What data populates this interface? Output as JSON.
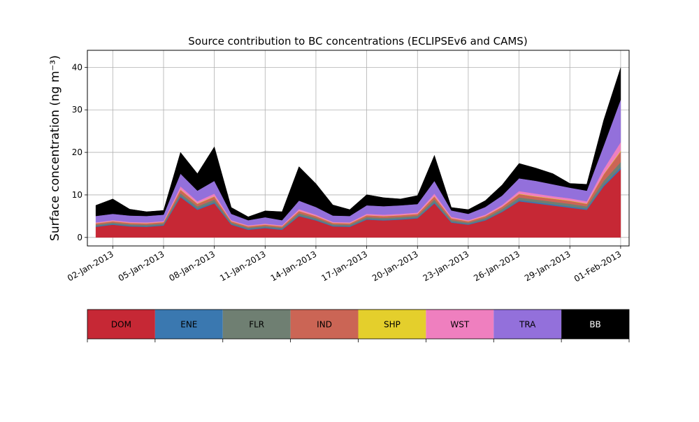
{
  "chart_data": {
    "type": "area",
    "stacked": true,
    "title": "Source contribution to BC concentrations (ECLIPSEv6 and CAMS)",
    "ylabel": "Surface concentration (ng m⁻³)",
    "xlabel": "",
    "xlim": [
      "2012-12-31T12:00",
      "2013-02-01T12:00"
    ],
    "ylim": [
      -2,
      44
    ],
    "grid": true,
    "x_ticks": [
      "02-Jan-2013",
      "05-Jan-2013",
      "08-Jan-2013",
      "11-Jan-2013",
      "14-Jan-2013",
      "17-Jan-2013",
      "20-Jan-2013",
      "23-Jan-2013",
      "26-Jan-2013",
      "29-Jan-2013",
      "01-Feb-2013"
    ],
    "y_ticks": [
      0,
      10,
      20,
      30,
      40
    ],
    "x": [
      "2013-01-01",
      "2013-01-02",
      "2013-01-03",
      "2013-01-04",
      "2013-01-05",
      "2013-01-06",
      "2013-01-07",
      "2013-01-08",
      "2013-01-09",
      "2013-01-10",
      "2013-01-11",
      "2013-01-12",
      "2013-01-13",
      "2013-01-14",
      "2013-01-15",
      "2013-01-16",
      "2013-01-17",
      "2013-01-18",
      "2013-01-19",
      "2013-01-20",
      "2013-01-21",
      "2013-01-22",
      "2013-01-23",
      "2013-01-24",
      "2013-01-25",
      "2013-01-26",
      "2013-01-27",
      "2013-01-28",
      "2013-01-29",
      "2013-01-30",
      "2013-01-31",
      "2013-02-01"
    ],
    "series": [
      {
        "name": "DOM",
        "color": "#c62835",
        "values": [
          2.5,
          3.0,
          2.6,
          2.5,
          2.8,
          9.5,
          6.5,
          8.0,
          3.0,
          1.8,
          2.2,
          1.8,
          5.0,
          4.0,
          2.6,
          2.5,
          4.2,
          4.0,
          4.2,
          4.5,
          8.0,
          3.5,
          3.0,
          4.0,
          6.0,
          8.5,
          8.0,
          7.5,
          7.0,
          6.5,
          12.0,
          16.0
        ]
      },
      {
        "name": "ENE",
        "color": "#3a78b0",
        "values": [
          0.2,
          0.2,
          0.2,
          0.2,
          0.2,
          0.3,
          0.3,
          0.3,
          0.2,
          0.2,
          0.2,
          0.2,
          0.2,
          0.2,
          0.2,
          0.2,
          0.2,
          0.2,
          0.2,
          0.2,
          0.3,
          0.2,
          0.2,
          0.2,
          0.2,
          0.3,
          0.3,
          0.3,
          0.3,
          0.3,
          0.4,
          0.5
        ]
      },
      {
        "name": "FLR",
        "color": "#6f7f72",
        "values": [
          0.3,
          0.3,
          0.3,
          0.3,
          0.3,
          0.6,
          0.5,
          0.6,
          0.3,
          0.3,
          0.3,
          0.3,
          0.5,
          0.4,
          0.3,
          0.3,
          0.4,
          0.4,
          0.4,
          0.4,
          0.6,
          0.4,
          0.3,
          0.4,
          0.5,
          0.6,
          0.6,
          0.6,
          0.6,
          0.5,
          0.9,
          1.2
        ]
      },
      {
        "name": "IND",
        "color": "#cb6555",
        "values": [
          0.3,
          0.3,
          0.3,
          0.3,
          0.3,
          0.8,
          0.6,
          0.7,
          0.3,
          0.3,
          0.3,
          0.3,
          0.5,
          0.4,
          0.3,
          0.3,
          0.4,
          0.4,
          0.4,
          0.4,
          0.7,
          0.4,
          0.3,
          0.4,
          0.5,
          0.8,
          0.7,
          0.7,
          0.7,
          0.6,
          1.5,
          2.5
        ]
      },
      {
        "name": "SHP",
        "color": "#e4cf2c",
        "values": [
          0.05,
          0.05,
          0.05,
          0.05,
          0.05,
          0.1,
          0.1,
          0.1,
          0.05,
          0.05,
          0.05,
          0.05,
          0.05,
          0.05,
          0.05,
          0.05,
          0.05,
          0.05,
          0.05,
          0.05,
          0.1,
          0.05,
          0.05,
          0.05,
          0.05,
          0.1,
          0.1,
          0.1,
          0.1,
          0.1,
          0.1,
          0.2
        ]
      },
      {
        "name": "WST",
        "color": "#ef7fbf",
        "values": [
          0.2,
          0.2,
          0.2,
          0.2,
          0.2,
          0.7,
          0.5,
          0.6,
          0.2,
          0.2,
          0.2,
          0.2,
          0.4,
          0.3,
          0.2,
          0.2,
          0.3,
          0.3,
          0.3,
          0.3,
          0.6,
          0.3,
          0.2,
          0.3,
          0.4,
          0.6,
          0.6,
          0.5,
          0.5,
          0.5,
          1.2,
          2.0
        ]
      },
      {
        "name": "TRA",
        "color": "#9370db",
        "values": [
          1.5,
          1.5,
          1.5,
          1.5,
          1.5,
          3.0,
          2.5,
          3.0,
          1.5,
          1.2,
          1.5,
          1.2,
          2.0,
          1.8,
          1.5,
          1.5,
          2.0,
          2.0,
          2.0,
          2.0,
          3.0,
          1.5,
          1.5,
          1.8,
          2.2,
          3.0,
          3.0,
          2.8,
          2.5,
          2.5,
          5.5,
          10.0
        ]
      },
      {
        "name": "BB",
        "color": "#000000",
        "values": [
          2.5,
          3.5,
          1.5,
          1.0,
          1.0,
          5.0,
          4.0,
          8.0,
          1.5,
          0.8,
          1.5,
          2.0,
          8.0,
          5.5,
          2.5,
          1.5,
          2.5,
          2.0,
          1.5,
          2.0,
          6.0,
          0.7,
          1.0,
          1.5,
          2.5,
          3.5,
          3.0,
          2.5,
          1.0,
          1.5,
          6.0,
          7.5
        ]
      }
    ],
    "legend": {
      "position": "below",
      "entries": [
        {
          "label": "DOM",
          "color": "#c62835",
          "text_color": "#000000"
        },
        {
          "label": "ENE",
          "color": "#3a78b0",
          "text_color": "#000000"
        },
        {
          "label": "FLR",
          "color": "#6f7f72",
          "text_color": "#000000"
        },
        {
          "label": "IND",
          "color": "#cb6555",
          "text_color": "#000000"
        },
        {
          "label": "SHP",
          "color": "#e4cf2c",
          "text_color": "#000000"
        },
        {
          "label": "WST",
          "color": "#ef7fbf",
          "text_color": "#000000"
        },
        {
          "label": "TRA",
          "color": "#9370db",
          "text_color": "#000000"
        },
        {
          "label": "BB",
          "color": "#000000",
          "text_color": "#ffffff"
        }
      ]
    }
  }
}
